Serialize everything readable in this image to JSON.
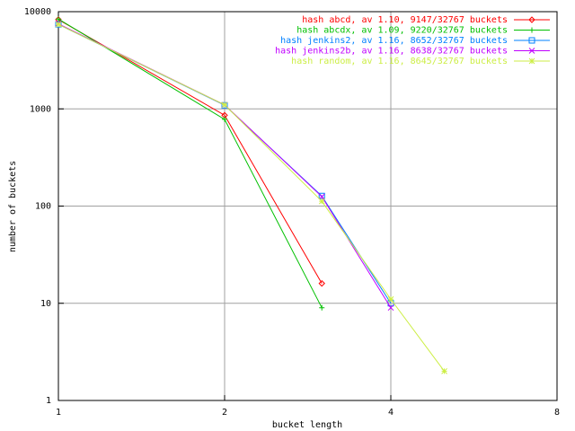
{
  "chart_data": {
    "type": "line",
    "x_label": "bucket length",
    "y_label": "number of buckets",
    "x_log": true,
    "y_log": true,
    "grid": true,
    "legend": "top-right",
    "xlim": [
      1,
      8
    ],
    "xticks": [
      1,
      2,
      4,
      8
    ],
    "ylim": [
      1,
      10000
    ],
    "yticks": [
      1,
      10,
      100,
      1000,
      10000
    ],
    "series": [
      {
        "name": "hash abcd, av 1.10, 9147/32767 buckets",
        "color": "#ff0000",
        "marker": "diamond",
        "x": [
          1,
          2,
          3
        ],
        "values": [
          8300,
          860,
          16
        ]
      },
      {
        "name": "hash abcdx, av 1.09, 9220/32767 buckets",
        "color": "#00c000",
        "marker": "plus",
        "x": [
          1,
          2,
          3
        ],
        "values": [
          8400,
          780,
          9
        ]
      },
      {
        "name": "hash jenkins2, av 1.16, 8652/32767 buckets",
        "color": "#0080ff",
        "marker": "square",
        "x": [
          1,
          2,
          3,
          4
        ],
        "values": [
          7400,
          1090,
          127,
          10
        ]
      },
      {
        "name": "hash jenkins2b, av 1.16, 8638/32767 buckets",
        "color": "#c000ff",
        "marker": "cross",
        "x": [
          1,
          2,
          3,
          4
        ],
        "values": [
          7500,
          1100,
          125,
          9
        ]
      },
      {
        "name": "hash random, av 1.16, 8645/32767 buckets",
        "color": "#ccee44",
        "marker": "star",
        "x": [
          1,
          2,
          3,
          4,
          5
        ],
        "values": [
          7400,
          1100,
          112,
          11,
          2
        ]
      }
    ]
  }
}
